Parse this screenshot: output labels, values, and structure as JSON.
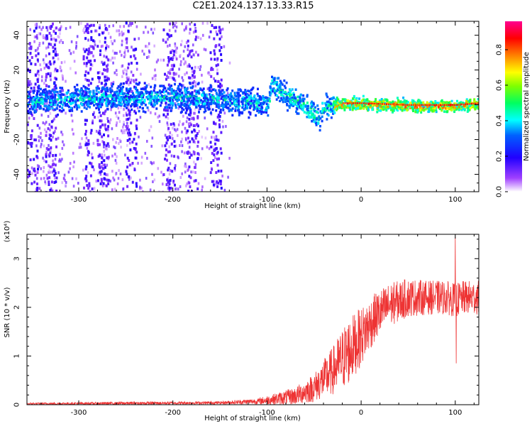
{
  "title": "C2E1.2024.137.13.33.R15",
  "chart_data": [
    {
      "type": "heatmap",
      "xlabel": "Height of straight line (km)",
      "ylabel": "Frequency (Hz)",
      "xlim": [
        -355,
        125
      ],
      "ylim": [
        -50,
        48
      ],
      "xticks": [
        -300,
        -200,
        -100,
        0,
        100
      ],
      "yticks": [
        -40,
        -20,
        0,
        20,
        40
      ],
      "colorbar": {
        "label": "Normalized spectral amplitude",
        "range": [
          0.0,
          0.96
        ],
        "ticks": [
          0.0,
          0.2,
          0.4,
          0.6,
          0.8
        ],
        "colormap": [
          "#ffffff",
          "#8a00ff",
          "#0000ff",
          "#00ffff",
          "#00ff00",
          "#ffff00",
          "#ff0000",
          "#ff0090"
        ]
      },
      "ridge": {
        "x": [
          -350,
          -300,
          -250,
          -200,
          -150,
          -120,
          -100,
          -95,
          -80,
          -60,
          -45,
          -40,
          -20,
          0,
          50,
          100,
          125
        ],
        "frequency_hz": [
          3,
          4,
          5,
          5,
          4,
          2,
          1,
          12,
          6,
          0,
          -8,
          0,
          1,
          1,
          0,
          0,
          1
        ]
      }
    },
    {
      "type": "line",
      "xlabel": "Height of straight line (km)",
      "ylabel": "SNR (10 * v/v)",
      "scale_label": "(x10⁴)",
      "xlim": [
        -355,
        125
      ],
      "ylim": [
        0,
        3.5
      ],
      "xticks": [
        -300,
        -200,
        -100,
        0,
        100
      ],
      "yticks": [
        0,
        1,
        2,
        3
      ],
      "color": "#ee3333",
      "envelope": {
        "x": [
          -355,
          -250,
          -150,
          -110,
          -90,
          -70,
          -50,
          -30,
          -15,
          0,
          15,
          30,
          50,
          70,
          90,
          100,
          110,
          125
        ],
        "mean": [
          0.02,
          0.03,
          0.04,
          0.07,
          0.12,
          0.18,
          0.35,
          0.7,
          1.05,
          1.4,
          1.8,
          2.05,
          2.2,
          2.2,
          2.2,
          2.15,
          2.2,
          2.2
        ],
        "spread": [
          0.02,
          0.03,
          0.03,
          0.06,
          0.12,
          0.18,
          0.3,
          0.5,
          0.7,
          0.6,
          0.5,
          0.45,
          0.4,
          0.35,
          0.35,
          0.35,
          0.35,
          0.35
        ]
      },
      "peak": {
        "x": 100,
        "y": 3.45
      },
      "dip": {
        "x": 101,
        "y": 0.85
      }
    }
  ]
}
